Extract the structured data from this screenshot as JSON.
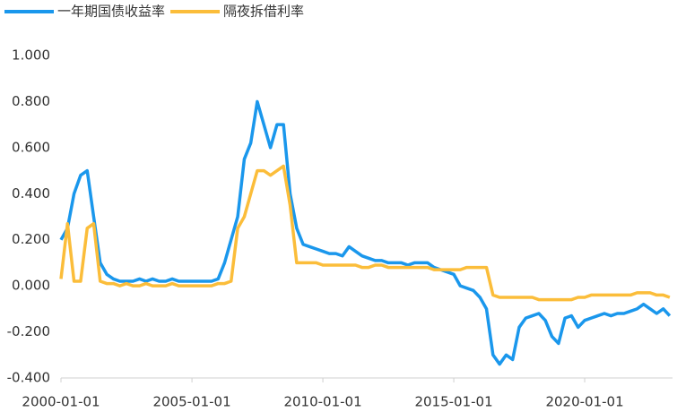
{
  "chart_data": {
    "type": "line",
    "x": [
      "2000-01-01",
      "2000-04-01",
      "2000-07-01",
      "2000-10-01",
      "2001-01-01",
      "2001-04-01",
      "2001-07-01",
      "2001-10-01",
      "2002-01-01",
      "2002-04-01",
      "2002-07-01",
      "2002-10-01",
      "2003-01-01",
      "2003-04-01",
      "2003-07-01",
      "2003-10-01",
      "2004-01-01",
      "2004-04-01",
      "2004-07-01",
      "2004-10-01",
      "2005-01-01",
      "2005-04-01",
      "2005-07-01",
      "2005-10-01",
      "2006-01-01",
      "2006-04-01",
      "2006-07-01",
      "2006-10-01",
      "2007-01-01",
      "2007-04-01",
      "2007-07-01",
      "2007-10-01",
      "2008-01-01",
      "2008-04-01",
      "2008-07-01",
      "2008-10-01",
      "2009-01-01",
      "2009-04-01",
      "2009-07-01",
      "2009-10-01",
      "2010-01-01",
      "2010-04-01",
      "2010-07-01",
      "2010-10-01",
      "2011-01-01",
      "2011-04-01",
      "2011-07-01",
      "2011-10-01",
      "2012-01-01",
      "2012-04-01",
      "2012-07-01",
      "2012-10-01",
      "2013-01-01",
      "2013-04-01",
      "2013-07-01",
      "2013-10-01",
      "2014-01-01",
      "2014-04-01",
      "2014-07-01",
      "2014-10-01",
      "2015-01-01",
      "2015-04-01",
      "2015-07-01",
      "2015-10-01",
      "2016-01-01",
      "2016-04-01",
      "2016-07-01",
      "2016-10-01",
      "2017-01-01",
      "2017-04-01",
      "2017-07-01",
      "2017-10-01",
      "2018-01-01",
      "2018-04-01",
      "2018-07-01",
      "2018-10-01",
      "2019-01-01",
      "2019-04-01",
      "2019-07-01",
      "2019-10-01",
      "2020-01-01",
      "2020-04-01",
      "2020-07-01",
      "2020-10-01",
      "2021-01-01",
      "2021-04-01",
      "2021-07-01",
      "2021-10-01",
      "2022-01-01",
      "2022-04-01",
      "2022-07-01",
      "2022-10-01",
      "2023-01-01",
      "2023-04-01"
    ],
    "series": [
      {
        "name": "一年期国债收益率",
        "color": "#1a97ec",
        "values": [
          0.2,
          0.25,
          0.4,
          0.48,
          0.5,
          0.3,
          0.1,
          0.05,
          0.03,
          0.02,
          0.02,
          0.02,
          0.03,
          0.02,
          0.03,
          0.02,
          0.02,
          0.03,
          0.02,
          0.02,
          0.02,
          0.02,
          0.02,
          0.02,
          0.03,
          0.1,
          0.2,
          0.3,
          0.55,
          0.62,
          0.8,
          0.7,
          0.6,
          0.7,
          0.7,
          0.4,
          0.25,
          0.18,
          0.17,
          0.16,
          0.15,
          0.14,
          0.14,
          0.13,
          0.17,
          0.15,
          0.13,
          0.12,
          0.11,
          0.11,
          0.1,
          0.1,
          0.1,
          0.09,
          0.1,
          0.1,
          0.1,
          0.08,
          0.07,
          0.06,
          0.05,
          0.0,
          -0.01,
          -0.02,
          -0.05,
          -0.1,
          -0.3,
          -0.34,
          -0.3,
          -0.32,
          -0.18,
          -0.14,
          -0.13,
          -0.12,
          -0.15,
          -0.22,
          -0.25,
          -0.14,
          -0.13,
          -0.18,
          -0.15,
          -0.14,
          -0.13,
          -0.12,
          -0.13,
          -0.12,
          -0.12,
          -0.11,
          -0.1,
          -0.08,
          -0.1,
          -0.12,
          -0.1,
          -0.13
        ]
      },
      {
        "name": "隔夜拆借利率",
        "color": "#fbbd3a",
        "values": [
          0.03,
          0.27,
          0.02,
          0.02,
          0.25,
          0.27,
          0.02,
          0.01,
          0.01,
          0.0,
          0.01,
          0.0,
          0.0,
          0.01,
          0.0,
          0.0,
          0.0,
          0.01,
          0.0,
          0.0,
          0.0,
          0.0,
          0.0,
          0.0,
          0.01,
          0.01,
          0.02,
          0.25,
          0.3,
          0.4,
          0.5,
          0.5,
          0.48,
          0.5,
          0.52,
          0.35,
          0.1,
          0.1,
          0.1,
          0.1,
          0.09,
          0.09,
          0.09,
          0.09,
          0.09,
          0.09,
          0.08,
          0.08,
          0.09,
          0.09,
          0.08,
          0.08,
          0.08,
          0.08,
          0.08,
          0.08,
          0.08,
          0.07,
          0.07,
          0.07,
          0.07,
          0.07,
          0.08,
          0.08,
          0.08,
          0.08,
          -0.04,
          -0.05,
          -0.05,
          -0.05,
          -0.05,
          -0.05,
          -0.05,
          -0.06,
          -0.06,
          -0.06,
          -0.06,
          -0.06,
          -0.06,
          -0.05,
          -0.05,
          -0.04,
          -0.04,
          -0.04,
          -0.04,
          -0.04,
          -0.04,
          -0.04,
          -0.03,
          -0.03,
          -0.03,
          -0.04,
          -0.04,
          -0.05
        ]
      }
    ],
    "xlim": [
      "2000-01-01",
      "2023-05-10"
    ],
    "xticks": [
      "2000-01-01",
      "2005-01-01",
      "2010-01-01",
      "2015-01-01",
      "2020-01-01"
    ],
    "ylim": [
      -0.4,
      1.0
    ],
    "yticks": [
      {
        "value": -0.4,
        "label": "-0.400"
      },
      {
        "value": -0.2,
        "label": "-0.200"
      },
      {
        "value": 0,
        "label": "0.000"
      },
      {
        "value": 0.2,
        "label": "0.200"
      },
      {
        "value": 0.4,
        "label": "0.400"
      },
      {
        "value": 0.6,
        "label": "0.600"
      },
      {
        "value": 0.8,
        "label": "0.800"
      },
      {
        "value": 1.0,
        "label": "1.000"
      }
    ],
    "legend": "top-left"
  }
}
